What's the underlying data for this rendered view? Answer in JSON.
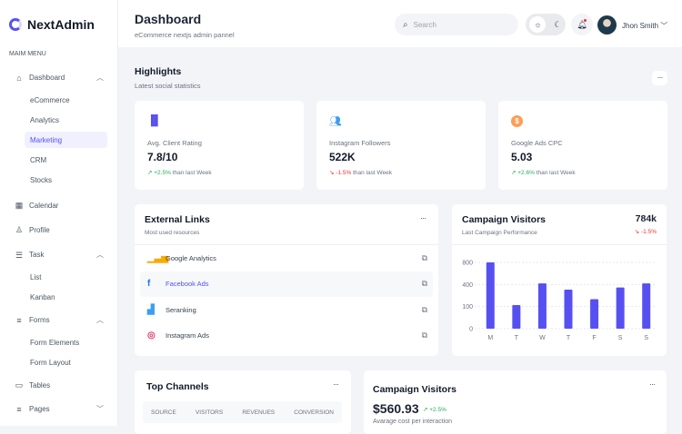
{
  "sidebar": {
    "brand": "NextAdmin",
    "menu_label": "MAIM MENU",
    "items": [
      {
        "label": "Dashboard",
        "icon": "home-icon",
        "expanded": true,
        "children": [
          "eCommerce",
          "Analytics",
          "Marketing",
          "CRM",
          "Stocks"
        ],
        "active_child": "Marketing"
      },
      {
        "label": "Calendar",
        "icon": "calendar-icon"
      },
      {
        "label": "Profile",
        "icon": "user-icon"
      },
      {
        "label": "Task",
        "icon": "task-list-icon",
        "expanded": true,
        "children": [
          "List",
          "Kanban"
        ]
      },
      {
        "label": "Forms",
        "icon": "forms-icon",
        "expanded": true,
        "children": [
          "Form Elements",
          "Form Layout"
        ]
      },
      {
        "label": "Tables",
        "icon": "table-icon"
      },
      {
        "label": "Pages",
        "icon": "pages-icon",
        "expanded": false
      }
    ]
  },
  "header": {
    "title": "Dashboard",
    "subtitle": "eCommerce nextjs admin pannel",
    "search_placeholder": "Search",
    "user_name": "Jhon Smith"
  },
  "highlights": {
    "title": "Highlights",
    "subtitle": "Latest social statistics",
    "cards": [
      {
        "label": "Avg. Client Rating",
        "value": "7.8/10",
        "change": "+2.5%",
        "direction": "up",
        "suffix": "than last Week",
        "icon": "bar-chart-icon",
        "color": "#5750f1"
      },
      {
        "label": "Instagram Followers",
        "value": "522K",
        "change": "-1.5%",
        "direction": "down",
        "suffix": "than last Week",
        "icon": "users-icon",
        "color": "#3c9ef1"
      },
      {
        "label": "Google Ads CPC",
        "value": "5.03",
        "change": "+2.6%",
        "direction": "up",
        "suffix": "than last Week",
        "icon": "dollar-icon",
        "color": "#ff9c55"
      }
    ]
  },
  "external_links": {
    "title": "External Links",
    "subtitle": "Most used resources",
    "links": [
      {
        "label": "Google Analytics",
        "icon": "google-analytics-icon"
      },
      {
        "label": "Facebook Ads",
        "icon": "facebook-icon",
        "active": true
      },
      {
        "label": "Seranking",
        "icon": "seranking-icon"
      },
      {
        "label": "Instagram Ads",
        "icon": "instagram-icon"
      }
    ]
  },
  "campaign": {
    "title": "Campaign Visitors",
    "subtitle": "Last Campaign Performance",
    "total": "784k",
    "change": "-1.5%"
  },
  "chart_data": {
    "type": "bar",
    "categories": [
      "M",
      "T",
      "W",
      "T",
      "F",
      "S",
      "S"
    ],
    "values": [
      800,
      120,
      420,
      330,
      200,
      360,
      420
    ],
    "yticks": [
      0,
      100,
      400,
      800
    ],
    "ylim": [
      0,
      800
    ],
    "grid": true,
    "color": "#5750f1"
  },
  "top_channels": {
    "title": "Top Channels",
    "columns": [
      "SOURCE",
      "VISITORS",
      "REVENUES",
      "CONVERSION"
    ]
  },
  "campaign2": {
    "title": "Campaign Visitors",
    "value": "$560.93",
    "change": "+2.5%",
    "subtitle": "Avarage cost per interaction"
  }
}
